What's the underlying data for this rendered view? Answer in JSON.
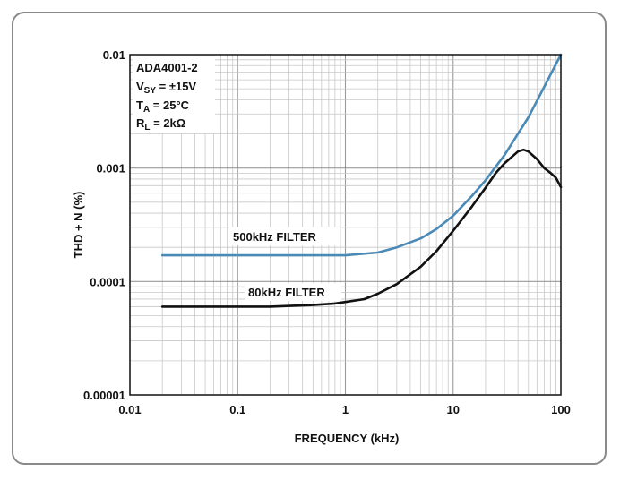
{
  "chart_data": {
    "type": "line",
    "title": "",
    "xlabel": "FREQUENCY (kHz)",
    "ylabel": "THD + N (%)",
    "x_scale": "log",
    "y_scale": "log",
    "xlim": [
      0.01,
      100
    ],
    "ylim": [
      1e-05,
      0.01
    ],
    "grid": true,
    "x_ticks": [
      "0.01",
      "0.1",
      "1",
      "10",
      "100"
    ],
    "y_ticks": [
      "0.00001",
      "0.0001",
      "0.001",
      "0.01"
    ],
    "conditions": {
      "part": "ADA4001-2",
      "vsy": {
        "main": "V",
        "sub": "SY",
        "rest": " = ±15V"
      },
      "ta": {
        "main": "T",
        "sub": "A",
        "rest": " = 25°C"
      },
      "rl": {
        "main": "R",
        "sub": "L",
        "rest": " = 2kΩ"
      }
    },
    "series": [
      {
        "name": "500kHz FILTER",
        "color": "#4a8ab6",
        "x": [
          0.02,
          0.05,
          0.1,
          0.2,
          0.5,
          1,
          2,
          3,
          5,
          7,
          10,
          15,
          20,
          30,
          50,
          70,
          100
        ],
        "y": [
          0.00017,
          0.00017,
          0.00017,
          0.00017,
          0.00017,
          0.00017,
          0.00018,
          0.0002,
          0.00024,
          0.00029,
          0.00038,
          0.00057,
          0.00078,
          0.0013,
          0.0028,
          0.0052,
          0.01
        ]
      },
      {
        "name": "80kHz FILTER",
        "color": "#111111",
        "x": [
          0.02,
          0.05,
          0.1,
          0.2,
          0.5,
          0.8,
          1,
          1.5,
          2,
          3,
          5,
          7,
          10,
          15,
          20,
          25,
          30,
          40,
          45,
          50,
          60,
          70,
          80,
          90,
          100
        ],
        "y": [
          6e-05,
          6e-05,
          6e-05,
          6e-05,
          6.2e-05,
          6.4e-05,
          6.6e-05,
          7e-05,
          7.8e-05,
          9.5e-05,
          0.000135,
          0.000185,
          0.00028,
          0.00046,
          0.00067,
          0.00091,
          0.0011,
          0.0014,
          0.00145,
          0.0014,
          0.0012,
          0.001,
          0.00091,
          0.00082,
          0.00068
        ]
      }
    ]
  }
}
